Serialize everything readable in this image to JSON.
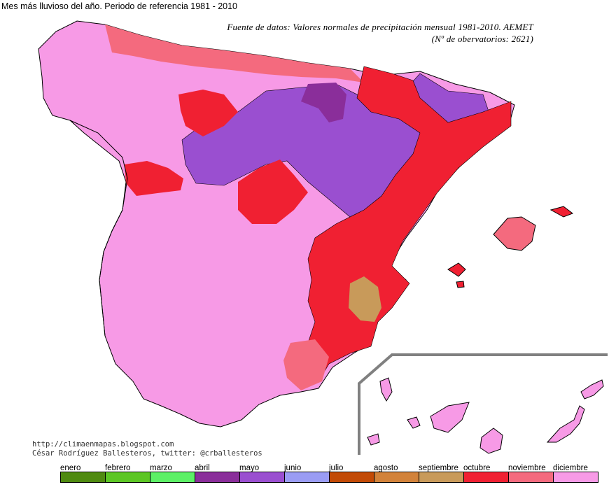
{
  "title": "Mes más lluvioso del año. Periodo de referencia 1981 - 2010",
  "source": {
    "line1": "Fuente de datos: Valores normales de precipitación mensual 1981-2010. AEMET",
    "line2": "(Nº de obervatorios: 2621)"
  },
  "credits": {
    "url": "http://climaenmapas.blogspot.com",
    "author": "César Rodríguez Ballesteros, twitter: @crballesteros"
  },
  "legend": [
    {
      "label": "enero",
      "color": "#4f8a10"
    },
    {
      "label": "febrero",
      "color": "#5cc624"
    },
    {
      "label": "marzo",
      "color": "#5cf066"
    },
    {
      "label": "abril",
      "color": "#8a2e9a"
    },
    {
      "label": "mayo",
      "color": "#9a4fd0"
    },
    {
      "label": "junio",
      "color": "#9a9cf4"
    },
    {
      "label": "julio",
      "color": "#c24a06"
    },
    {
      "label": "agosto",
      "color": "#d2823a"
    },
    {
      "label": "septiembre",
      "color": "#c89a5a"
    },
    {
      "label": "octubre",
      "color": "#f02032"
    },
    {
      "label": "noviembre",
      "color": "#f46a7e"
    },
    {
      "label": "diciembre",
      "color": "#f79ae6"
    }
  ]
}
